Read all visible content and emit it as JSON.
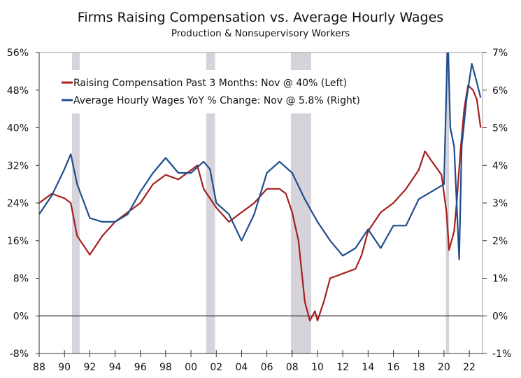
{
  "chart_data": {
    "type": "line",
    "title": "Firms Raising Compensation vs. Average Hourly Wages",
    "subtitle": "Production & Nonsupervisory Workers",
    "xlim": [
      1988,
      2023
    ],
    "ylim_left": [
      -8,
      56
    ],
    "ylim_right": [
      -1,
      7
    ],
    "left_ticks": [
      "56%",
      "48%",
      "40%",
      "32%",
      "24%",
      "16%",
      "8%",
      "0%",
      "-8%"
    ],
    "left_tick_values": [
      56,
      48,
      40,
      32,
      24,
      16,
      8,
      0,
      -8
    ],
    "right_ticks": [
      "7%",
      "6%",
      "5%",
      "4%",
      "3%",
      "2%",
      "1%",
      "0%",
      "-1%"
    ],
    "right_tick_values": [
      7,
      6,
      5,
      4,
      3,
      2,
      1,
      0,
      -1
    ],
    "x_ticks": [
      "88",
      "90",
      "92",
      "94",
      "96",
      "98",
      "00",
      "02",
      "04",
      "06",
      "08",
      "10",
      "12",
      "14",
      "16",
      "18",
      "20",
      "22"
    ],
    "x_tick_values": [
      1988,
      1990,
      1992,
      1994,
      1996,
      1998,
      2000,
      2002,
      2004,
      2006,
      2008,
      2010,
      2012,
      2014,
      2016,
      2018,
      2020,
      2022
    ],
    "grid": false,
    "legend_placement": "top-left",
    "recessions": [
      [
        1990.6,
        1991.2
      ],
      [
        2001.2,
        2001.9
      ],
      [
        2007.9,
        2009.5
      ],
      [
        2020.15,
        2020.4
      ]
    ],
    "recession_color": "#d6d3da",
    "series": [
      {
        "name": "Raising Compensation Past 3 Months: Nov @ 40% (Left)",
        "axis": "left",
        "color": "#a4201f",
        "x": [
          1988,
          1989,
          1990,
          1990.5,
          1991,
          1992,
          1993,
          1994,
          1995,
          1996,
          1997,
          1998,
          1999,
          2000,
          2000.5,
          2001,
          2002,
          2003,
          2004,
          2005,
          2006,
          2007,
          2007.5,
          2008,
          2008.5,
          2009,
          2009.4,
          2009.8,
          2010,
          2010.5,
          2011,
          2012,
          2013,
          2013.5,
          2014,
          2015,
          2016,
          2017,
          2018,
          2018.5,
          2019,
          2019.8,
          2020.2,
          2020.4,
          2020.8,
          2021,
          2021.3,
          2021.6,
          2021.9,
          2022.3,
          2022.6,
          2022.9
        ],
        "y": [
          24,
          26,
          25,
          24,
          17,
          13,
          17,
          20,
          22,
          24,
          28,
          30,
          29,
          31,
          32,
          27,
          23,
          20,
          22,
          24,
          27,
          27,
          26,
          22,
          16,
          3,
          -1,
          1,
          -1,
          3,
          8,
          9,
          10,
          13,
          18,
          22,
          24,
          27,
          31,
          35,
          33,
          30,
          22,
          14,
          18,
          24,
          35,
          44,
          49,
          48,
          46,
          40
        ]
      },
      {
        "name": "Average Hourly Wages YoY % Change: Nov @ 5.8% (Right)",
        "axis": "right",
        "color": "#1f4e8c",
        "x": [
          1988,
          1989,
          1990,
          1990.5,
          1991,
          1992,
          1993,
          1994,
          1995,
          1996,
          1997,
          1998,
          1999,
          2000,
          2001,
          2001.5,
          2002,
          2003,
          2004,
          2005,
          2006,
          2007,
          2008,
          2009,
          2010,
          2011,
          2012,
          2013,
          2014,
          2015,
          2016,
          2017,
          2018,
          2019,
          2020.0,
          2020.3,
          2020.5,
          2020.8,
          2021.2,
          2021.4,
          2021.8,
          2022.2,
          2022.6,
          2022.9
        ],
        "y": [
          2.7,
          3.2,
          3.9,
          4.3,
          3.5,
          2.6,
          2.5,
          2.5,
          2.7,
          3.3,
          3.8,
          4.2,
          3.8,
          3.8,
          4.1,
          3.9,
          3.0,
          2.7,
          2.0,
          2.7,
          3.8,
          4.1,
          3.8,
          3.1,
          2.5,
          2.0,
          1.6,
          1.8,
          2.3,
          1.8,
          2.4,
          2.4,
          3.1,
          3.3,
          3.5,
          7.5,
          5.0,
          4.5,
          1.5,
          4.5,
          5.8,
          6.7,
          6.2,
          5.8
        ]
      }
    ]
  }
}
